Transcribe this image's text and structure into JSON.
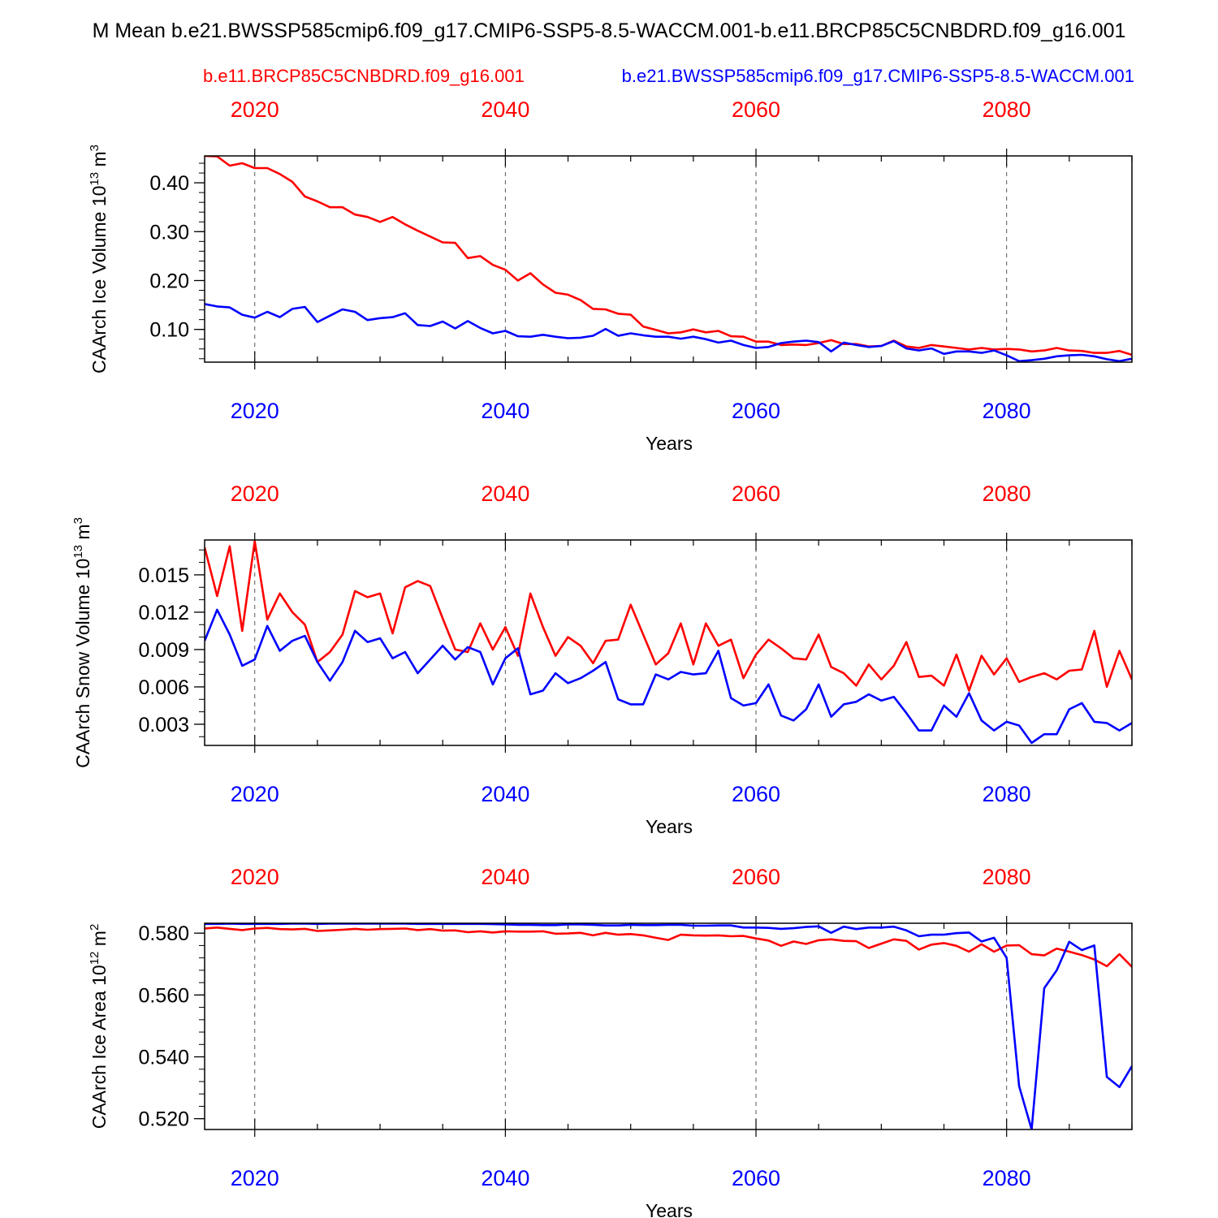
{
  "colors": {
    "caseA": "#ff0000",
    "caseB": "#0000ff",
    "axis": "#000000",
    "grid": "#555555",
    "background": "#ffffff"
  },
  "chart_data": {
    "type": "line",
    "title": "M Mean b.e21.BWSSP585cmip6.f09_g17.CMIP6-SSP5-8.5-WACCM.001-b.e11.BRCP85C5CNBDRD.f09_g16.001",
    "legend": {
      "caseA_label": "b.e11.BRCP85C5CNBDRD.f09_g16.001",
      "caseB_label": "b.e21.BWSSP585cmip6.f09_g17.CMIP6-SSP5-8.5-WACCM.001",
      "placement": "top"
    },
    "xlim": [
      2016,
      2090
    ],
    "xticks": [
      2020,
      2040,
      2060,
      2080
    ],
    "xtick_labels": [
      "2020",
      "2040",
      "2060",
      "2080"
    ],
    "xlabel": "Years",
    "x": [
      2016,
      2017,
      2018,
      2019,
      2020,
      2021,
      2022,
      2023,
      2024,
      2025,
      2026,
      2027,
      2028,
      2029,
      2030,
      2031,
      2032,
      2033,
      2034,
      2035,
      2036,
      2037,
      2038,
      2039,
      2040,
      2041,
      2042,
      2043,
      2044,
      2045,
      2046,
      2047,
      2048,
      2049,
      2050,
      2051,
      2052,
      2053,
      2054,
      2055,
      2056,
      2057,
      2058,
      2059,
      2060,
      2061,
      2062,
      2063,
      2064,
      2065,
      2066,
      2067,
      2068,
      2069,
      2070,
      2071,
      2072,
      2073,
      2074,
      2075,
      2076,
      2077,
      2078,
      2079,
      2080,
      2081,
      2082,
      2083,
      2084,
      2085,
      2086,
      2087,
      2088,
      2089,
      2090
    ],
    "panels": [
      {
        "ylabel_main": "CAArch Ice Volume 10",
        "ylabel_exp": "13",
        "ylabel_unit": " m",
        "ylabel_unit_exp": "3",
        "ylim": [
          0.033,
          0.455
        ],
        "yticks": [
          0.1,
          0.2,
          0.3,
          0.4
        ],
        "ytick_labels": [
          "0.10",
          "0.20",
          "0.30",
          "0.40"
        ],
        "yminor": 0.02,
        "series": [
          {
            "name": "b.e11.BRCP85C5CNBDRD.f09_g16.001",
            "color_key": "caseA",
            "values": [
              0.455,
              0.454,
              0.435,
              0.44,
              0.43,
              0.43,
              0.418,
              0.402,
              0.372,
              0.362,
              0.35,
              0.35,
              0.335,
              0.33,
              0.32,
              0.33,
              0.315,
              0.302,
              0.29,
              0.278,
              0.277,
              0.246,
              0.25,
              0.232,
              0.222,
              0.2,
              0.215,
              0.192,
              0.175,
              0.171,
              0.16,
              0.142,
              0.141,
              0.132,
              0.13,
              0.106,
              0.099,
              0.092,
              0.094,
              0.1,
              0.094,
              0.097,
              0.086,
              0.085,
              0.075,
              0.075,
              0.068,
              0.069,
              0.068,
              0.072,
              0.078,
              0.07,
              0.07,
              0.065,
              0.066,
              0.077,
              0.065,
              0.062,
              0.068,
              0.065,
              0.062,
              0.059,
              0.062,
              0.059,
              0.06,
              0.059,
              0.055,
              0.057,
              0.062,
              0.057,
              0.056,
              0.052,
              0.052,
              0.056,
              0.048
            ]
          },
          {
            "name": "b.e21.BWSSP585cmip6.f09_g17.CMIP6-SSP5-8.5-WACCM.001",
            "color_key": "caseB",
            "values": [
              0.152,
              0.147,
              0.145,
              0.13,
              0.124,
              0.136,
              0.125,
              0.142,
              0.146,
              0.115,
              0.128,
              0.141,
              0.136,
              0.119,
              0.123,
              0.125,
              0.133,
              0.109,
              0.107,
              0.116,
              0.102,
              0.117,
              0.103,
              0.092,
              0.097,
              0.086,
              0.085,
              0.089,
              0.085,
              0.082,
              0.083,
              0.087,
              0.101,
              0.087,
              0.092,
              0.088,
              0.085,
              0.085,
              0.081,
              0.085,
              0.08,
              0.073,
              0.077,
              0.068,
              0.062,
              0.064,
              0.072,
              0.075,
              0.077,
              0.074,
              0.055,
              0.073,
              0.068,
              0.064,
              0.066,
              0.076,
              0.061,
              0.057,
              0.061,
              0.05,
              0.055,
              0.055,
              0.052,
              0.057,
              0.047,
              0.035,
              0.037,
              0.04,
              0.045,
              0.047,
              0.048,
              0.045,
              0.039,
              0.035,
              0.04
            ]
          }
        ]
      },
      {
        "ylabel_main": "CAArch Snow Volume 10",
        "ylabel_exp": "13",
        "ylabel_unit": " m",
        "ylabel_unit_exp": "3",
        "ylim": [
          0.0013,
          0.0178
        ],
        "yticks": [
          0.003,
          0.006,
          0.009,
          0.012,
          0.015
        ],
        "ytick_labels": [
          "0.003",
          "0.006",
          "0.009",
          "0.012",
          "0.015"
        ],
        "yminor": 0.001,
        "series": [
          {
            "name": "b.e11.BRCP85C5CNBDRD.f09_g16.001",
            "color_key": "caseA",
            "values": [
              0.0172,
              0.0133,
              0.0173,
              0.0105,
              0.0177,
              0.0114,
              0.0135,
              0.012,
              0.011,
              0.008,
              0.0088,
              0.0102,
              0.0137,
              0.0132,
              0.0135,
              0.0103,
              0.014,
              0.0145,
              0.0141,
              0.0115,
              0.009,
              0.0088,
              0.0111,
              0.009,
              0.0108,
              0.0085,
              0.0135,
              0.0108,
              0.0085,
              0.01,
              0.0093,
              0.0079,
              0.0097,
              0.0098,
              0.0126,
              0.0102,
              0.0078,
              0.0087,
              0.0111,
              0.0078,
              0.0111,
              0.0093,
              0.0098,
              0.0067,
              0.0086,
              0.0098,
              0.0091,
              0.0083,
              0.0082,
              0.0102,
              0.0076,
              0.0071,
              0.0061,
              0.0078,
              0.0066,
              0.0077,
              0.0096,
              0.0068,
              0.0069,
              0.0061,
              0.0086,
              0.0057,
              0.0085,
              0.007,
              0.0083,
              0.0064,
              0.0068,
              0.0071,
              0.0066,
              0.0073,
              0.0074,
              0.0105,
              0.006,
              0.0089,
              0.0066
            ]
          },
          {
            "name": "b.e21.BWSSP585cmip6.f09_g17.CMIP6-SSP5-8.5-WACCM.001",
            "color_key": "caseB",
            "values": [
              0.0097,
              0.0122,
              0.0102,
              0.0077,
              0.0082,
              0.0109,
              0.0089,
              0.0097,
              0.0101,
              0.008,
              0.0065,
              0.008,
              0.0105,
              0.0096,
              0.0099,
              0.0083,
              0.0088,
              0.0071,
              0.0082,
              0.0093,
              0.0082,
              0.0092,
              0.0088,
              0.0062,
              0.0083,
              0.0091,
              0.0054,
              0.0057,
              0.0071,
              0.0063,
              0.0067,
              0.0073,
              0.008,
              0.005,
              0.0046,
              0.0046,
              0.007,
              0.0066,
              0.0072,
              0.007,
              0.0071,
              0.0089,
              0.0051,
              0.0045,
              0.0047,
              0.0062,
              0.0037,
              0.0033,
              0.0042,
              0.0062,
              0.0036,
              0.0046,
              0.0048,
              0.0054,
              0.0049,
              0.0052,
              0.0039,
              0.0025,
              0.0025,
              0.0045,
              0.0036,
              0.0055,
              0.0033,
              0.0025,
              0.0032,
              0.0029,
              0.0015,
              0.0022,
              0.0022,
              0.0042,
              0.0047,
              0.0032,
              0.0031,
              0.0025,
              0.0031
            ]
          }
        ]
      },
      {
        "ylabel_main": "CAArch Ice Area 10",
        "ylabel_exp": "12",
        "ylabel_unit": " m",
        "ylabel_unit_exp": "2",
        "ylim": [
          0.5165,
          0.5832
        ],
        "yticks": [
          0.52,
          0.54,
          0.56,
          0.58
        ],
        "ytick_labels": [
          "0.520",
          "0.540",
          "0.560",
          "0.580"
        ],
        "yminor": 0.004,
        "series": [
          {
            "name": "b.e11.BRCP85C5CNBDRD.f09_g16.001",
            "color_key": "caseA",
            "values": [
              0.5815,
              0.5818,
              0.5814,
              0.581,
              0.5815,
              0.5817,
              0.5813,
              0.5812,
              0.5814,
              0.5807,
              0.5809,
              0.5811,
              0.5814,
              0.5811,
              0.5813,
              0.5814,
              0.5815,
              0.581,
              0.5813,
              0.5808,
              0.5809,
              0.5803,
              0.5806,
              0.5802,
              0.5806,
              0.5805,
              0.5805,
              0.5806,
              0.5798,
              0.5799,
              0.5801,
              0.5793,
              0.5801,
              0.5795,
              0.5797,
              0.5793,
              0.5785,
              0.5778,
              0.5795,
              0.5793,
              0.5792,
              0.5793,
              0.579,
              0.5791,
              0.5783,
              0.5776,
              0.5759,
              0.5773,
              0.5765,
              0.5777,
              0.578,
              0.5775,
              0.5774,
              0.5752,
              0.5766,
              0.578,
              0.5775,
              0.5747,
              0.5763,
              0.5768,
              0.5759,
              0.574,
              0.5764,
              0.574,
              0.576,
              0.5761,
              0.5732,
              0.5728,
              0.575,
              0.574,
              0.5729,
              0.5715,
              0.5693,
              0.5732,
              0.5691
            ]
          },
          {
            "name": "b.e21.BWSSP585cmip6.f09_g17.CMIP6-SSP5-8.5-WACCM.001",
            "color_key": "caseB",
            "values": [
              0.583,
              0.583,
              0.5831,
              0.583,
              0.583,
              0.583,
              0.583,
              0.5831,
              0.5831,
              0.583,
              0.5831,
              0.5831,
              0.5831,
              0.5831,
              0.5831,
              0.5831,
              0.5831,
              0.583,
              0.583,
              0.583,
              0.583,
              0.583,
              0.583,
              0.5829,
              0.5828,
              0.5827,
              0.5827,
              0.5826,
              0.5826,
              0.5828,
              0.5828,
              0.5827,
              0.5825,
              0.5825,
              0.5827,
              0.5826,
              0.5826,
              0.5827,
              0.5827,
              0.5824,
              0.5824,
              0.5825,
              0.5825,
              0.5818,
              0.5818,
              0.5817,
              0.5814,
              0.5816,
              0.582,
              0.5822,
              0.5801,
              0.5821,
              0.5813,
              0.5818,
              0.5818,
              0.5821,
              0.5809,
              0.579,
              0.5795,
              0.5795,
              0.58,
              0.5802,
              0.5773,
              0.5785,
              0.572,
              0.5305,
              0.5165,
              0.5622,
              0.568,
              0.5772,
              0.5745,
              0.576,
              0.5335,
              0.5302,
              0.537
            ]
          }
        ]
      }
    ]
  }
}
